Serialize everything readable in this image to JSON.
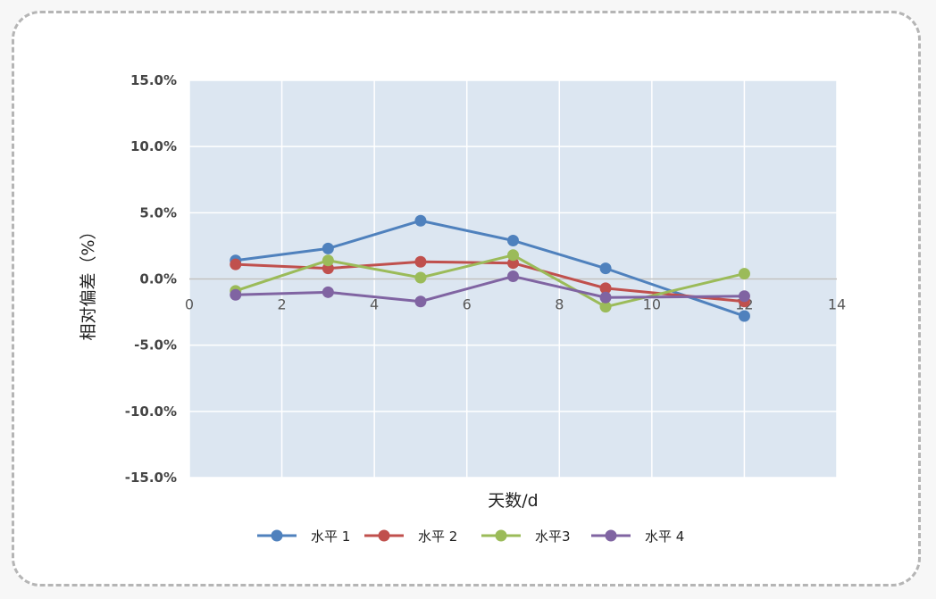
{
  "chart_data": {
    "type": "line",
    "xlabel": "天数/d",
    "ylabel": "相对偏差（%）",
    "xlim": [
      0,
      14
    ],
    "ylim": [
      -15,
      15
    ],
    "x_ticks": [
      0,
      2,
      4,
      6,
      8,
      10,
      12,
      14
    ],
    "y_ticks": [
      15,
      10,
      5,
      0,
      -5,
      -10,
      -15
    ],
    "y_tick_labels": [
      "15.0%",
      "10.0%",
      "5.0%",
      "0.0%",
      "-5.0%",
      "-10.0%",
      "-15.0%"
    ],
    "grid": true,
    "legend_position": "bottom",
    "x": [
      1,
      3,
      5,
      7,
      9,
      12
    ],
    "series": [
      {
        "name": "水平 1",
        "color": "#4f81bd",
        "values": [
          1.4,
          2.3,
          4.4,
          2.9,
          0.8,
          -2.8
        ]
      },
      {
        "name": "水平 2",
        "color": "#c0504d",
        "values": [
          1.1,
          0.8,
          1.3,
          1.2,
          -0.7,
          -1.7
        ]
      },
      {
        "name": "水平3",
        "color": "#9bbb59",
        "values": [
          -0.9,
          1.4,
          0.1,
          1.8,
          -2.1,
          0.4
        ]
      },
      {
        "name": "水平 4",
        "color": "#8064a2",
        "values": [
          -1.2,
          -1.0,
          -1.7,
          0.2,
          -1.4,
          -1.3
        ]
      }
    ]
  }
}
